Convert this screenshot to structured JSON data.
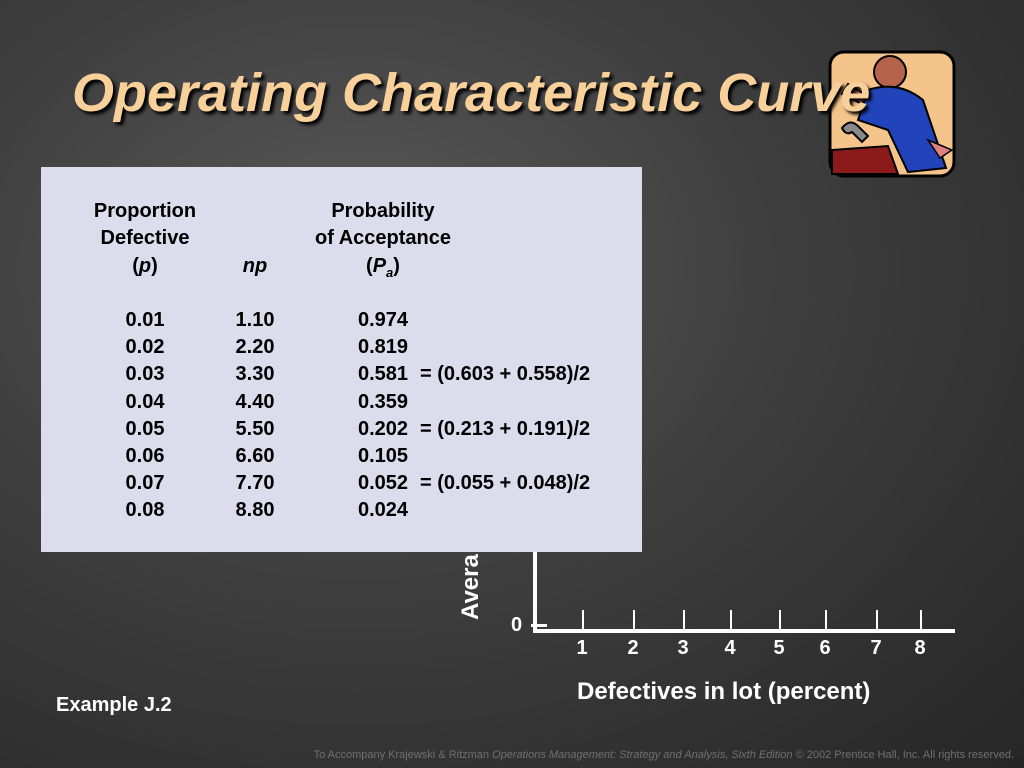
{
  "slide": {
    "title": "Operating Characteristic Curve",
    "example_label": "Example J.2",
    "footer": {
      "prefix": "To Accompany Krajewski & Ritzman ",
      "book_title": "Operations Management: Strategy and Analysis, Sixth Edition",
      "suffix": " © 2002 Prentice Hall, Inc. All rights reserved."
    },
    "clipart_icon": "worker-with-wrench-icon"
  },
  "table": {
    "headers": {
      "p_line1": "Proportion",
      "p_line2": "Defective",
      "p_symbol": "p",
      "np_label": "np",
      "pa_line1": "Probability",
      "pa_line2": "of Acceptance",
      "pa_symbol": "P",
      "pa_subscript": "a"
    },
    "rows": [
      {
        "p": "0.01",
        "np": "1.10",
        "pa": "0.974",
        "note": ""
      },
      {
        "p": "0.02",
        "np": "2.20",
        "pa": "0.819",
        "note": ""
      },
      {
        "p": "0.03",
        "np": "3.30",
        "pa": "0.581",
        "note": "= (0.603 + 0.558)/2"
      },
      {
        "p": "0.04",
        "np": "4.40",
        "pa": "0.359",
        "note": ""
      },
      {
        "p": "0.05",
        "np": "5.50",
        "pa": "0.202",
        "note": "= (0.213 + 0.191)/2"
      },
      {
        "p": "0.06",
        "np": "6.60",
        "pa": "0.105",
        "note": ""
      },
      {
        "p": "0.07",
        "np": "7.70",
        "pa": "0.052",
        "note": "= (0.055 + 0.048)/2"
      },
      {
        "p": "0.08",
        "np": "8.80",
        "pa": "0.024",
        "note": ""
      }
    ]
  },
  "chart_data": {
    "type": "line",
    "xlabel": "Defectives in lot (percent)",
    "ylabel_visible_fragment": "Avera",
    "x_ticks": [
      "1",
      "2",
      "3",
      "4",
      "5",
      "6",
      "7",
      "8"
    ],
    "y_ticks": [
      "0"
    ],
    "series": []
  }
}
